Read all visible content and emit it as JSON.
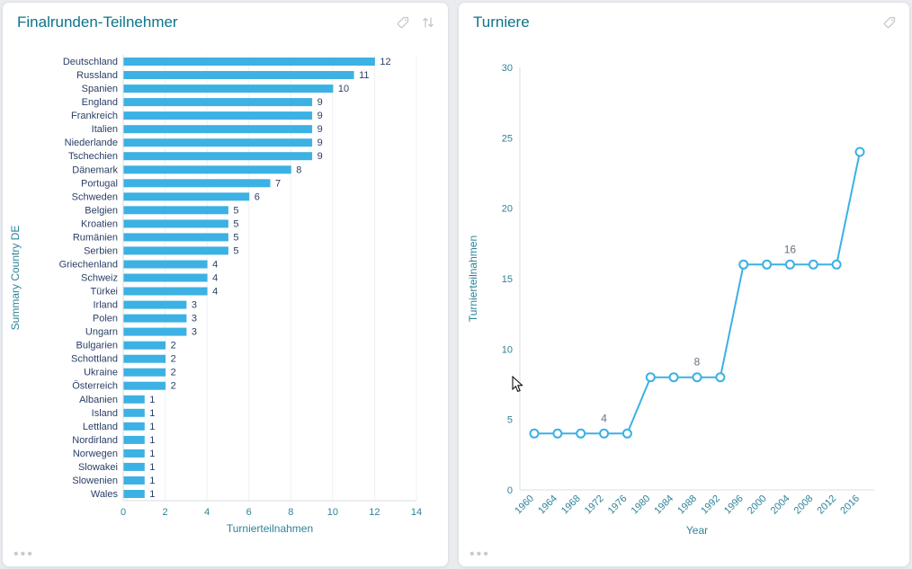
{
  "colors": {
    "accent_blue": "#3cb1e3",
    "teal_title": "#0d7489",
    "axis_text": "#2d8398",
    "label_navy": "#2a3f66",
    "annotation_gray": "#68727c",
    "icon_gray": "#c3c8cd",
    "page_background": "#e9ebee"
  },
  "cards": [
    {
      "title": "Finalrunden-Teilnehmer",
      "more_icon": "•••"
    },
    {
      "title": "Turniere",
      "more_icon": "•••"
    }
  ],
  "chart_data": [
    {
      "type": "bar",
      "orientation": "horizontal",
      "title": "Finalrunden-Teilnehmer",
      "categories": [
        "Deutschland",
        "Russland",
        "Spanien",
        "England",
        "Frankreich",
        "Italien",
        "Niederlande",
        "Tschechien",
        "Dänemark",
        "Portugal",
        "Schweden",
        "Belgien",
        "Kroatien",
        "Rumänien",
        "Serbien",
        "Griechenland",
        "Schweiz",
        "Türkei",
        "Irland",
        "Polen",
        "Ungarn",
        "Bulgarien",
        "Schottland",
        "Ukraine",
        "Österreich",
        "Albanien",
        "Island",
        "Lettland",
        "Nordirland",
        "Norwegen",
        "Slowakei",
        "Slowenien",
        "Wales"
      ],
      "values": [
        12,
        11,
        10,
        9,
        9,
        9,
        9,
        9,
        8,
        7,
        6,
        5,
        5,
        5,
        5,
        4,
        4,
        4,
        3,
        3,
        3,
        2,
        2,
        2,
        2,
        1,
        1,
        1,
        1,
        1,
        1,
        1,
        1
      ],
      "xlabel": "Turnierteilnahmen",
      "ylabel": "Summary Country DE",
      "xlim": [
        0,
        14
      ],
      "xticks": [
        0,
        2,
        4,
        6,
        8,
        10,
        12,
        14
      ],
      "grid": true,
      "color": "#3cb1e3",
      "value_labels": true
    },
    {
      "type": "line",
      "title": "Turniere",
      "x": [
        1960,
        1964,
        1968,
        1972,
        1976,
        1980,
        1984,
        1988,
        1992,
        1996,
        2000,
        2004,
        2008,
        2012,
        2016
      ],
      "values": [
        4,
        4,
        4,
        4,
        4,
        8,
        8,
        8,
        8,
        16,
        16,
        16,
        16,
        16,
        24
      ],
      "xlabel": "Year",
      "ylabel": "Turnierteilnahmen",
      "ylim": [
        0,
        30
      ],
      "yticks": [
        0,
        5,
        10,
        15,
        20,
        25,
        30
      ],
      "grid": false,
      "color": "#3cb1e3",
      "markers": "open-circle",
      "annotations": [
        {
          "x": 1972,
          "y": 4,
          "label": "4"
        },
        {
          "x": 1988,
          "y": 8,
          "label": "8"
        },
        {
          "x": 2004,
          "y": 16,
          "label": "16"
        }
      ]
    }
  ]
}
